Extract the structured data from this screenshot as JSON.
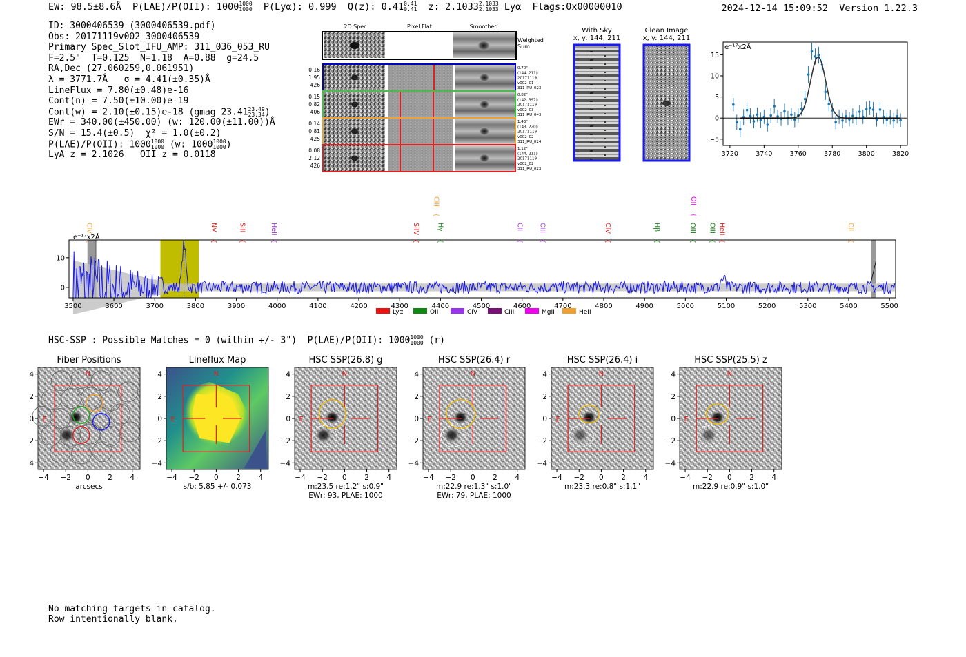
{
  "header": {
    "ew": "EW: 98.5±8.6Å",
    "plae_label": "P(LAE)/P(OII):",
    "plae_value": "1000",
    "plae_hi": "1000",
    "plae_lo": "1000",
    "plya": "P(Lyα): 0.999",
    "q_label": "Q(z): 0.41",
    "q_hi": "0.41",
    "q_lo": "0.41",
    "z_label": "z: 2.1033",
    "z_hi": "2.1033",
    "z_lo": "2.1033",
    "z_line": "Lyα",
    "flags": "Flags:0x00000010",
    "timestamp": "2024-12-14 15:09:52  Version 1.22.3"
  },
  "info": {
    "id": "ID: 3000406539 (3000406539.pdf)",
    "obs": "Obs: 20171119v002_3000406539",
    "primary": "Primary Spec_Slot_IFU_AMP: 311_036_053_RU",
    "params": "F=2.5\"  T=0.125  N=1.18  A=0.88  g=24.5",
    "radec": "RA,Dec (27.060259,0.061951)",
    "lambda": "λ = 3771.7Å   σ = 4.41(±0.35)Å",
    "lineflux": "LineFlux = 7.80(±0.48)e-16",
    "contn": "Cont(n) = 7.50(±10.00)e-19",
    "contw": "Cont(w) = 2.10(±0.15)e-18 (gmag 23.41",
    "contw_hi": "23.49",
    "contw_lo": "23.34",
    "contw_end": ")",
    "ewr": "EWr = 340.00(±450.00) (w: 120.00(±11.00))Å",
    "sn": "S/N = 15.4(±0.5)  χ² = 1.0(±0.2)",
    "plae": "P(LAE)/P(OII): 1000",
    "plae_hi": "1000",
    "plae_lo": "1000",
    "plae_w": "(w: 1000",
    "plae_w_hi": "1000",
    "plae_w_lo": "1000",
    "plae_end": ")",
    "lyaz": "LyA z = 2.1026   OII z = 0.0118"
  },
  "spec2d": {
    "col_headers": [
      "2D Spec",
      "Pixel Flat",
      "Smoothed"
    ],
    "weighted_sum": [
      "Weighted",
      "Sum"
    ],
    "rows": [
      {
        "left": [
          "0.16",
          "1.95",
          "426"
        ],
        "right": [
          "0.70\"",
          "(144, 211)",
          "20171119",
          "v002_01",
          "311_RU_023"
        ],
        "color": "#0000cc"
      },
      {
        "left": [
          "0.15",
          "0.82",
          "406"
        ],
        "right": [
          "0.82\"",
          "(142, 397)",
          "20171119",
          "v002_03",
          "311_RU_043"
        ],
        "color": "#33cc33"
      },
      {
        "left": [
          "0.14",
          "0.81",
          "425"
        ],
        "right": [
          "1.43\"",
          "(143, 220)",
          "20171119",
          "v002_02",
          "311_RU_024"
        ],
        "color": "#f0a030"
      },
      {
        "left": [
          "0.08",
          "2.12",
          "426"
        ],
        "right": [
          "1.12\"",
          "(144, 211)",
          "20171119",
          "v002_02",
          "311_RU_023"
        ],
        "color": "#e02020"
      }
    ]
  },
  "sky_panels": {
    "with_sky": [
      "With Sky",
      "x, y: 144, 211"
    ],
    "clean": [
      "Clean Image",
      "x, y: 144, 211"
    ]
  },
  "zoom_chart": {
    "type": "scatter",
    "unit_label": "e⁻¹⁷x2Å",
    "xlim": [
      3716,
      3824
    ],
    "ylim": [
      -6.5,
      18
    ],
    "xticks": [
      "3720",
      "3740",
      "3760",
      "3780",
      "3800",
      "3820"
    ],
    "yticks": [
      "15",
      "10",
      "5",
      "0",
      "−5"
    ],
    "points": [
      [
        3722,
        3.2,
        1.6
      ],
      [
        3724,
        -1.0,
        1.8
      ],
      [
        3726,
        -2.6,
        2.0
      ],
      [
        3728,
        0.2,
        1.9
      ],
      [
        3730,
        1.9,
        1.7
      ],
      [
        3732,
        0.5,
        1.8
      ],
      [
        3734,
        -0.8,
        1.6
      ],
      [
        3736,
        0.8,
        1.7
      ],
      [
        3738,
        -0.5,
        1.8
      ],
      [
        3740,
        0.3,
        1.7
      ],
      [
        3742,
        -1.6,
        1.6
      ],
      [
        3744,
        0.6,
        1.8
      ],
      [
        3746,
        2.8,
        1.7
      ],
      [
        3748,
        0.4,
        1.6
      ],
      [
        3750,
        -0.2,
        1.7
      ],
      [
        3752,
        1.6,
        1.8
      ],
      [
        3754,
        0.0,
        1.7
      ],
      [
        3756,
        0.8,
        1.6
      ],
      [
        3758,
        -0.4,
        1.8
      ],
      [
        3760,
        0.6,
        1.7
      ],
      [
        3762,
        2.2,
        1.6
      ],
      [
        3764,
        4.5,
        1.9
      ],
      [
        3766,
        10.3,
        2.0
      ],
      [
        3768,
        15.8,
        2.0
      ],
      [
        3770,
        14.6,
        1.9
      ],
      [
        3772,
        14.9,
        2.0
      ],
      [
        3774,
        12.6,
        1.8
      ],
      [
        3776,
        6.2,
        1.9
      ],
      [
        3778,
        3.3,
        1.7
      ],
      [
        3780,
        1.8,
        1.8
      ],
      [
        3782,
        -1.0,
        1.6
      ],
      [
        3784,
        0.3,
        1.7
      ],
      [
        3786,
        -0.6,
        1.8
      ],
      [
        3788,
        0.4,
        1.6
      ],
      [
        3790,
        -0.3,
        1.7
      ],
      [
        3792,
        0.5,
        1.8
      ],
      [
        3794,
        0.0,
        1.7
      ],
      [
        3796,
        1.5,
        1.6
      ],
      [
        3798,
        0.3,
        1.7
      ],
      [
        3800,
        2.1,
        1.8
      ],
      [
        3802,
        2.4,
        1.7
      ],
      [
        3804,
        2.0,
        1.8
      ],
      [
        3806,
        -0.4,
        1.6
      ],
      [
        3808,
        2.0,
        1.8
      ],
      [
        3810,
        0.3,
        1.7
      ],
      [
        3812,
        -0.4,
        1.6
      ],
      [
        3814,
        0.2,
        1.7
      ],
      [
        3816,
        -0.6,
        1.8
      ],
      [
        3818,
        0.4,
        1.7
      ],
      [
        3820,
        -0.5,
        1.6
      ]
    ],
    "fit": {
      "amp": 14.5,
      "center": 3771.7,
      "sigma": 4.41
    }
  },
  "full_spectrum": {
    "type": "line",
    "unit_label": "e⁻¹⁷x2Å",
    "xlim": [
      3490,
      5515
    ],
    "ylim": [
      -3.5,
      16
    ],
    "xticks": [
      "3500",
      "3600",
      "3700",
      "3800",
      "3900",
      "4000",
      "4100",
      "4200",
      "4300",
      "4400",
      "4500",
      "4600",
      "4700",
      "4800",
      "4900",
      "5000",
      "5100",
      "5200",
      "5300",
      "5400",
      "5500"
    ],
    "yticks": [
      "10",
      "0"
    ],
    "highlight": [
      3714,
      3808
    ],
    "line_center": 3771.7,
    "emission_labels": [
      {
        "text": "CIV",
        "x": 3540,
        "color": "#f0a030",
        "row": "high"
      },
      {
        "text": "NV",
        "x": 3845,
        "color": "#e02020",
        "row": "high"
      },
      {
        "text": "SiII",
        "x": 3915,
        "color": "#e02020",
        "row": "high"
      },
      {
        "text": "HeII",
        "x": 3992,
        "color": "#9933cc",
        "row": "high"
      },
      {
        "text": "SiIV",
        "x": 4340,
        "color": "#e02020",
        "row": "high"
      },
      {
        "text": "CIII",
        "x": 4390,
        "color": "#f0a030",
        "row": "top"
      },
      {
        "text": "Hγ",
        "x": 4400,
        "color": "#228822",
        "row": "high"
      },
      {
        "text": "CII",
        "x": 4595,
        "color": "#9933cc",
        "row": "high"
      },
      {
        "text": "CIII",
        "x": 4650,
        "color": "#9933cc",
        "row": "high"
      },
      {
        "text": "CIV",
        "x": 4810,
        "color": "#e02020",
        "row": "high"
      },
      {
        "text": "Hβ",
        "x": 4930,
        "color": "#228822",
        "row": "high"
      },
      {
        "text": "OII",
        "x": 5020,
        "color": "#ee00ee",
        "row": "top"
      },
      {
        "text": "OIII",
        "x": 5018,
        "color": "#228822",
        "row": "high"
      },
      {
        "text": "OIII",
        "x": 5066,
        "color": "#228822",
        "row": "high"
      },
      {
        "text": "HeII",
        "x": 5090,
        "color": "#e02020",
        "row": "high"
      },
      {
        "text": "CII",
        "x": 5405,
        "color": "#f0a030",
        "row": "high"
      }
    ],
    "legend": [
      {
        "label": "Lyα",
        "color": "#ee1111"
      },
      {
        "label": "OII",
        "color": "#118811"
      },
      {
        "label": "CIV",
        "color": "#9933ee"
      },
      {
        "label": "CIII",
        "color": "#771177"
      },
      {
        "label": "MgII",
        "color": "#ee00ee"
      },
      {
        "label": "HeII",
        "color": "#f0a030"
      }
    ]
  },
  "hsc": {
    "line": "HSC-SSP : Possible Matches = 0 (within +/- 3\")  P(LAE)/P(OII): 1000",
    "hi": "1000",
    "lo": "1000",
    "end": " (r)"
  },
  "cutouts": [
    {
      "title": "Fiber Positions",
      "xlabel": "arcsecs",
      "sub": ""
    },
    {
      "title": "Lineflux Map",
      "xlabel": "s/b: 5.85 +/- 0.073",
      "sub": ""
    },
    {
      "title": "HSC SSP(26.8) g",
      "xlabel": "m:23.5  re:1.2\"  s:0.9\"",
      "sub": "EWr: 93, PLAE: 1000"
    },
    {
      "title": "HSC SSP(26.4) r",
      "xlabel": "m:22.9  re:1.3\"  s:1.0\"",
      "sub": "EWr: 79, PLAE: 1000"
    },
    {
      "title": "HSC SSP(26.4) i",
      "xlabel": "m:23.3  re:0.8\"  s:1.1\"",
      "sub": ""
    },
    {
      "title": "HSC SSP(25.5) z",
      "xlabel": "m:22.9  re:0.9\"  s:1.0\"",
      "sub": ""
    }
  ],
  "cutout_ticks": {
    "x": [
      "−4",
      "−2",
      "0",
      "2",
      "4"
    ],
    "y": [
      "4",
      "2",
      "0",
      "−2",
      "−4"
    ],
    "north": "N",
    "east": "E"
  },
  "footer": [
    "No matching targets in catalog.",
    "Row intentionally blank."
  ]
}
